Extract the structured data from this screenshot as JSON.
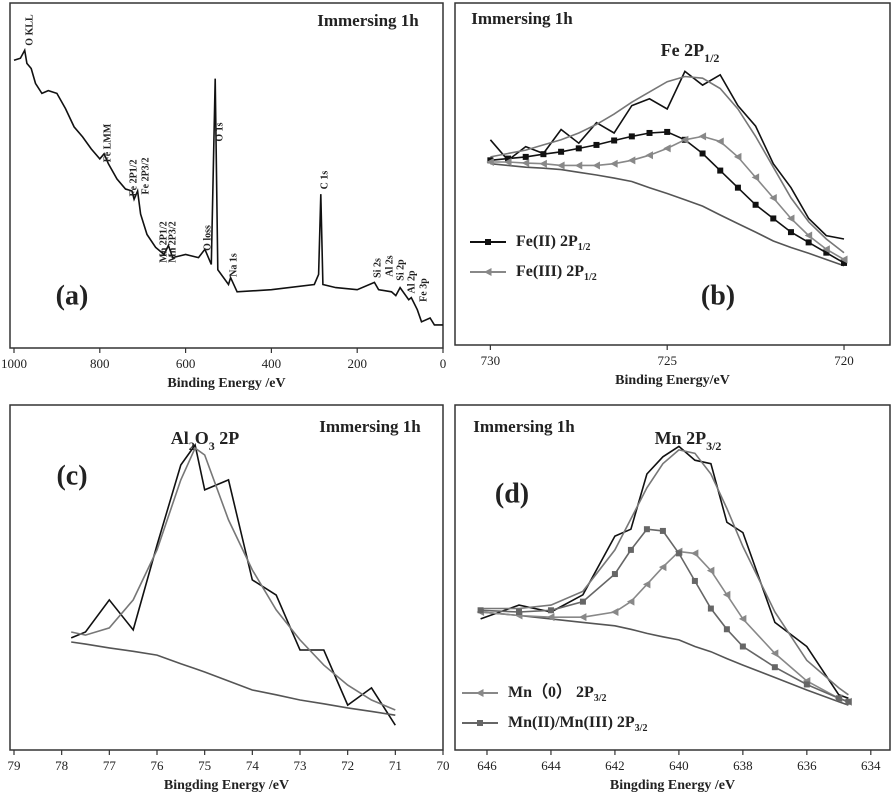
{
  "chart_data": [
    {
      "type": "line",
      "panel_label": "(a)",
      "sample": "Immersing 1h",
      "xlabel": "Binding Energy /eV",
      "xlim": [
        1000,
        0
      ],
      "xticks": [
        1000,
        800,
        600,
        400,
        200,
        0
      ],
      "ylim": [
        0,
        100
      ],
      "x": [
        1000,
        985,
        975,
        970,
        960,
        950,
        935,
        920,
        900,
        880,
        860,
        840,
        820,
        800,
        790,
        780,
        760,
        740,
        725,
        720,
        712,
        705,
        690,
        670,
        650,
        640,
        630,
        600,
        570,
        555,
        540,
        531,
        525,
        500,
        495,
        480,
        400,
        300,
        290,
        284.8,
        280,
        250,
        200,
        160,
        150,
        120,
        110,
        100,
        80,
        74,
        60,
        50,
        30,
        20,
        0
      ],
      "series": [
        {
          "color": "#111111",
          "values": [
            83.4,
            84,
            86.3,
            82.5,
            81,
            76.7,
            73.8,
            74.6,
            73.8,
            69.4,
            64.1,
            61.2,
            57.7,
            54.8,
            56.3,
            53.4,
            49,
            46.1,
            45.5,
            43.1,
            45.5,
            38.8,
            32.9,
            29.2,
            27.1,
            29.7,
            26.2,
            27.1,
            26.2,
            28.6,
            24.2,
            78.1,
            22.7,
            18.4,
            20.4,
            16.3,
            16.9,
            18.4,
            21.3,
            44.6,
            18.4,
            17.5,
            16.9,
            19,
            16.9,
            16.3,
            15.2,
            17.5,
            14,
            14.6,
            11.1,
            7.6,
            8.7,
            6.7,
            6.7
          ]
        }
      ],
      "annotations": [
        "O KLL",
        "Fe LMM",
        "Fe 2P1/2",
        "Fe 2P3/2",
        "Mn 2P1/2",
        "Mn 2P3/2",
        "O loss",
        "O 1s",
        "Na 1s",
        "C 1s",
        "Si 2s",
        "Al 2s",
        "Si 2p",
        "Al 2p",
        "Fe 3p"
      ]
    },
    {
      "type": "line",
      "panel_label": "(b)",
      "sample": "Immersing 1h",
      "xlabel": "Binding Energy/eV",
      "title": [
        {
          "text": "Fe 2P"
        },
        {
          "text": "1/2",
          "sub": true
        }
      ],
      "xlim": [
        731,
        718.7
      ],
      "xticks": [
        730,
        725,
        720
      ],
      "ylim": [
        0,
        100
      ],
      "x": [
        730,
        729.5,
        729,
        728.5,
        728,
        727.5,
        727,
        726.5,
        726,
        725.5,
        725,
        724.5,
        724,
        723.5,
        723,
        722.5,
        722,
        721.5,
        721,
        720.5,
        720
      ],
      "series": [
        {
          "color": "#111111",
          "values": [
            60,
            54,
            58,
            56,
            63,
            59,
            65,
            62,
            70,
            72,
            69,
            80,
            76,
            79,
            70,
            64,
            53,
            46,
            37,
            32,
            31
          ]
        },
        {
          "color": "#777777",
          "values": [
            55,
            56,
            57,
            58.5,
            60,
            62,
            64.5,
            67.5,
            71,
            74,
            77,
            78.5,
            78,
            75,
            69,
            61,
            52,
            43,
            36,
            31,
            27
          ]
        },
        {
          "color": "#555555",
          "values": [
            53,
            52.5,
            52,
            51.7,
            51.3,
            50.5,
            49.7,
            48.8,
            47.8,
            46,
            44.3,
            42.5,
            40.6,
            38,
            35.5,
            33,
            30.4,
            28.5,
            26.8,
            25,
            23.2
          ]
        },
        {
          "name": [
            {
              "text": "Fe(II) 2P"
            },
            {
              "text": "1/2",
              "sub": true
            }
          ],
          "color": "#111111",
          "marker": "square",
          "values": [
            54,
            54.5,
            55,
            55.8,
            56.5,
            57.5,
            58.5,
            59.8,
            61,
            62,
            62.3,
            60,
            56,
            51,
            46,
            41,
            37,
            33,
            30,
            27,
            24
          ]
        },
        {
          "name": [
            {
              "text": "Fe(III) 2P"
            },
            {
              "text": "1/2",
              "sub": true
            }
          ],
          "color": "#888888",
          "marker": "triangle",
          "values": [
            53.5,
            53.5,
            53.2,
            53,
            52.5,
            52.5,
            52.5,
            53,
            54,
            55.5,
            57.5,
            60,
            61,
            59.5,
            55,
            49,
            43,
            37,
            32,
            28,
            25
          ]
        }
      ]
    },
    {
      "type": "line",
      "panel_label": "(c)",
      "sample": "Immersing 1h",
      "xlabel": "Bingding Energy /eV",
      "title": [
        {
          "text": "Al"
        },
        {
          "text": "2",
          "sub": true
        },
        {
          "text": "O"
        },
        {
          "text": "3",
          "sub": true
        },
        {
          "text": " 2P"
        }
      ],
      "xlim": [
        79,
        70
      ],
      "xticks": [
        79,
        78,
        77,
        76,
        75,
        74,
        73,
        72,
        71,
        70
      ],
      "ylim": [
        0,
        100
      ],
      "x": [
        77.8,
        77.5,
        77,
        76.5,
        76,
        75.5,
        75.2,
        75,
        74.5,
        74,
        73.5,
        73,
        72.5,
        72,
        71.5,
        71
      ],
      "series": [
        {
          "color": "#111111",
          "values": [
            32.5,
            34.2,
            43.5,
            34.8,
            59.4,
            82.6,
            88.4,
            75.4,
            78.3,
            49.3,
            44.9,
            29,
            29,
            13,
            18,
            7.2
          ]
        },
        {
          "color": "#777777",
          "values": [
            34.2,
            33.3,
            35.4,
            43.5,
            58,
            78.3,
            87.5,
            85.5,
            66.7,
            52.2,
            40.6,
            31.9,
            24.6,
            18.8,
            14.5,
            11.6
          ]
        },
        {
          "color": "#555555",
          "values": [
            31.3,
            30.7,
            29.6,
            28.6,
            27.5,
            25,
            23.6,
            22.6,
            20,
            17.4,
            16,
            14.5,
            13.4,
            12.2,
            11.2,
            10.1
          ]
        }
      ]
    },
    {
      "type": "line",
      "panel_label": "(d)",
      "sample": "Immersing 1h",
      "xlabel": "Bingding Energy /eV",
      "title": [
        {
          "text": "Mn 2P"
        },
        {
          "text": "3/2",
          "sub": true
        }
      ],
      "xlim": [
        647,
        633.4
      ],
      "xticks": [
        646,
        644,
        642,
        640,
        638,
        636,
        634
      ],
      "ylim": [
        0,
        100
      ],
      "x": [
        646.2,
        645,
        644,
        643,
        642,
        641.5,
        641,
        640.5,
        640,
        639.5,
        639,
        638.5,
        638,
        637,
        636,
        635,
        634.7
      ],
      "series": [
        {
          "color": "#111111",
          "values": [
            38,
            42,
            40,
            45,
            62,
            64,
            80,
            85,
            88,
            84,
            83,
            66,
            63,
            37,
            30,
            16,
            15
          ]
        },
        {
          "color": "#777777",
          "values": [
            41,
            41,
            42,
            46,
            58,
            67,
            76,
            83,
            87,
            86,
            80,
            70,
            59,
            40,
            26,
            18,
            16
          ]
        },
        {
          "color": "#555555",
          "values": [
            40,
            39,
            38,
            37,
            36,
            35,
            33.8,
            32.8,
            31.9,
            30,
            28.5,
            26.5,
            24.6,
            21,
            17.4,
            14,
            13
          ]
        },
        {
          "name": [
            {
              "text": "Mn（0） 2P"
            },
            {
              "text": "3/2",
              "sub": true
            }
          ],
          "color": "#888888",
          "marker": "triangle",
          "values": [
            40,
            39,
            38.5,
            38.5,
            40,
            43,
            48,
            53,
            57.5,
            57,
            52,
            45,
            38,
            28,
            20,
            15,
            14
          ]
        },
        {
          "name": [
            {
              "text": "Mn(II)/Mn(III) 2P"
            },
            {
              "text": "3/2",
              "sub": true
            }
          ],
          "color": "#666666",
          "marker": "square",
          "values": [
            40.5,
            40,
            40.5,
            43,
            51,
            58,
            64,
            63.5,
            57,
            49,
            41,
            35,
            30,
            24,
            19,
            15,
            14
          ]
        }
      ]
    }
  ]
}
